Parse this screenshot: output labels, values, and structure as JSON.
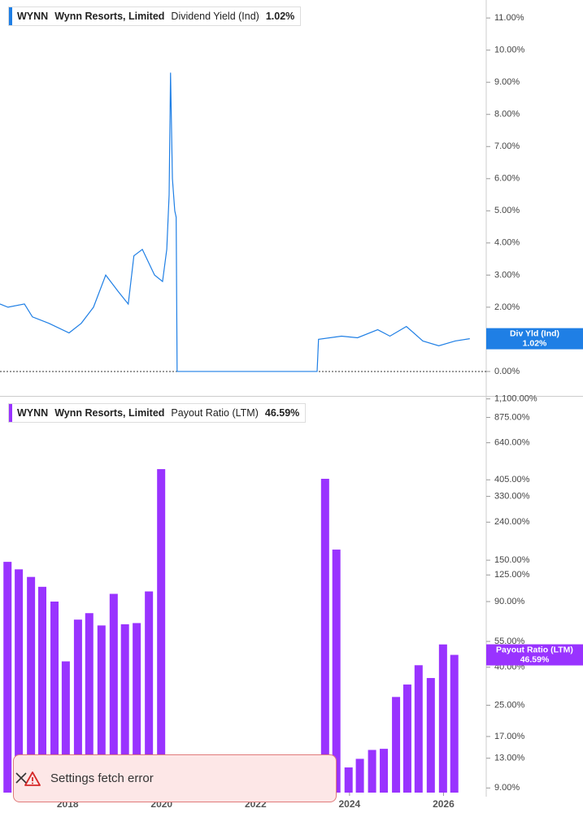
{
  "chart_data": [
    {
      "type": "line",
      "legend": {
        "ticker": "WYNN",
        "company": "Wynn Resorts, Limited",
        "value": "1.02%"
      },
      "flag_label": "Div Yld (Ind)",
      "x": [
        2016.56,
        2016.73,
        2017.08,
        2017.25,
        2017.6,
        2018.03,
        2018.29,
        2018.55,
        2018.81,
        2019.07,
        2019.29,
        2019.41,
        2019.59,
        2019.85,
        2020.02,
        2020.11,
        2020.16,
        2020.19,
        2020.23,
        2020.28,
        2020.31,
        2020.33,
        2023.31,
        2023.34,
        2023.83,
        2024.17,
        2024.6,
        2024.86,
        2025.21,
        2025.56,
        2025.9,
        2026.25,
        2026.56
      ],
      "series": [
        {
          "name": "Dividend Yield (Ind)",
          "color": "#1f7fe5",
          "values": [
            2.1,
            2.0,
            2.1,
            1.7,
            1.5,
            1.2,
            1.5,
            2.0,
            3.0,
            2.5,
            2.1,
            3.6,
            3.8,
            3.0,
            2.8,
            3.8,
            5.5,
            9.3,
            6.0,
            5.0,
            4.8,
            0,
            0,
            1.0,
            1.1,
            1.05,
            1.3,
            1.1,
            1.4,
            0.95,
            0.8,
            0.95,
            1.02
          ]
        }
      ],
      "xlim": [
        2016.56,
        2026.91
      ],
      "ylim": [
        -0.76,
        11.56
      ],
      "yticks": [
        {
          "value": 0,
          "label": "0.00%"
        },
        {
          "value": 1,
          "label": "1.00%"
        },
        {
          "value": 2,
          "label": "2.00%"
        },
        {
          "value": 3,
          "label": "3.00%"
        },
        {
          "value": 4,
          "label": "4.00%"
        },
        {
          "value": 5,
          "label": "5.00%"
        },
        {
          "value": 6,
          "label": "6.00%"
        },
        {
          "value": 7,
          "label": "7.00%"
        },
        {
          "value": 8,
          "label": "8.00%"
        },
        {
          "value": 9,
          "label": "9.00%"
        },
        {
          "value": 10,
          "label": "10.00%"
        },
        {
          "value": 11,
          "label": "11.00%"
        }
      ]
    },
    {
      "type": "bar",
      "legend": {
        "ticker": "WYNN",
        "company": "Wynn Resorts, Limited",
        "value": "46.59%"
      },
      "flag_label": "Payout Ratio (LTM)",
      "yscale": "log",
      "x": [
        2016.72,
        2016.96,
        2017.22,
        2017.46,
        2017.72,
        2017.96,
        2018.22,
        2018.46,
        2018.72,
        2018.98,
        2019.22,
        2019.47,
        2019.73,
        2019.99,
        2023.48,
        2023.72,
        2023.98,
        2024.22,
        2024.48,
        2024.73,
        2024.99,
        2025.23,
        2025.47,
        2025.73,
        2025.99,
        2026.23
      ],
      "series": [
        {
          "name": "Payout Ratio (LTM)",
          "color": "#9933ff",
          "values": [
            147,
            134,
            122,
            108,
            90,
            43,
            72,
            78,
            67,
            99,
            68,
            69,
            102,
            462,
            410,
            171,
            11.6,
            12.9,
            14.4,
            14.6,
            27.7,
            32.3,
            41,
            35,
            53,
            46.59
          ]
        }
      ],
      "xlim": [
        2016.56,
        2026.91
      ],
      "xticks": [
        2018,
        2020,
        2022,
        2024,
        2026
      ],
      "ylim": [
        8.5,
        1130
      ],
      "yticks": [
        {
          "value": 9,
          "label": "9.00%"
        },
        {
          "value": 13,
          "label": "13.00%"
        },
        {
          "value": 17,
          "label": "17.00%"
        },
        {
          "value": 25,
          "label": "25.00%"
        },
        {
          "value": 40,
          "label": "40.00%"
        },
        {
          "value": 55,
          "label": "55.00%"
        },
        {
          "value": 90,
          "label": "90.00%"
        },
        {
          "value": 125,
          "label": "125.00%"
        },
        {
          "value": 150,
          "label": "150.00%"
        },
        {
          "value": 240,
          "label": "240.00%"
        },
        {
          "value": 330,
          "label": "330.00%"
        },
        {
          "value": 405,
          "label": "405.00%"
        },
        {
          "value": 640,
          "label": "640.00%"
        },
        {
          "value": 875,
          "label": "875.00%"
        },
        {
          "value": 1100,
          "label": "1,100.00%"
        }
      ]
    }
  ],
  "toast": {
    "message": "Settings fetch error"
  }
}
